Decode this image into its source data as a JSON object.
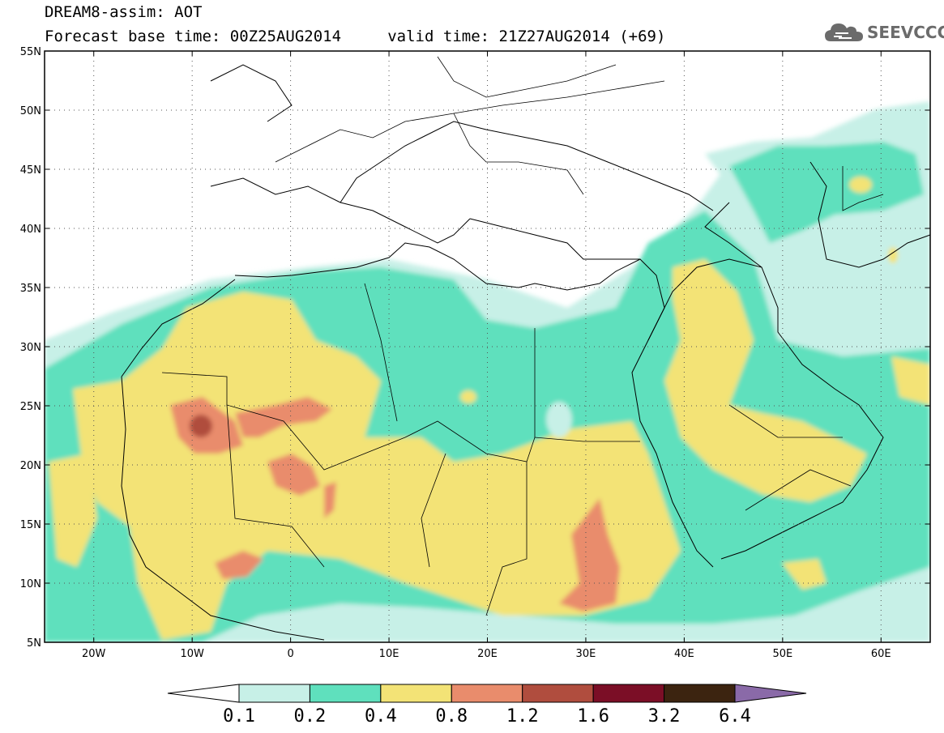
{
  "header": {
    "title_line1": "DREAM8-assim: AOT",
    "title_line2": "Forecast base time: 00Z25AUG2014     valid time: 21Z27AUG2014 (+69)",
    "logo_text": "SEEVCCC",
    "logo_icon": "cloud-logo-icon"
  },
  "map": {
    "lon_range": [
      -25,
      65
    ],
    "lat_range": [
      5,
      55
    ],
    "lat_labels": [
      "55N",
      "50N",
      "45N",
      "40N",
      "35N",
      "30N",
      "25N",
      "20N",
      "15N",
      "10N",
      "5N"
    ],
    "lat_values": [
      55,
      50,
      45,
      40,
      35,
      30,
      25,
      20,
      15,
      10,
      5
    ],
    "lon_labels": [
      "20W",
      "10W",
      "0",
      "10E",
      "20E",
      "30E",
      "40E",
      "50E",
      "60E"
    ],
    "lon_values": [
      -20,
      -10,
      0,
      10,
      20,
      30,
      40,
      50,
      60
    ],
    "grid_dotted": true
  },
  "colorbar": {
    "levels": [
      "0.1",
      "0.2",
      "0.4",
      "0.8",
      "1.2",
      "1.6",
      "3.2",
      "6.4"
    ],
    "colors": [
      "#ffffff",
      "#c7f0e7",
      "#5fe0bd",
      "#f3e376",
      "#e98c6c",
      "#b04d3e",
      "#7b0e26",
      "#3c2410",
      "#8a6aa8"
    ]
  }
}
